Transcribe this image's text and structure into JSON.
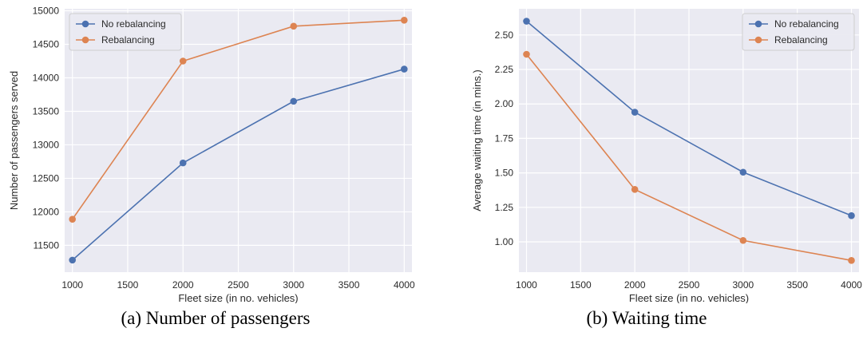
{
  "chart_data": [
    {
      "type": "line",
      "caption": "(a) Number of passengers",
      "xlabel": "Fleet size (in no. vehicles)",
      "ylabel": "Number of passengers served",
      "x": [
        1000,
        2000,
        3000,
        4000
      ],
      "xlim": [
        930,
        4070
      ],
      "ylim": [
        11100,
        15030
      ],
      "xticks": [
        1000,
        1500,
        2000,
        2500,
        3000,
        3500,
        4000
      ],
      "yticks": [
        11500,
        12000,
        12500,
        13000,
        13500,
        14000,
        14500,
        15000
      ],
      "grid": true,
      "legend_position": "top-left",
      "series": [
        {
          "name": "No rebalancing",
          "color": "#4c72b0",
          "values": [
            11280,
            12730,
            13650,
            14130
          ]
        },
        {
          "name": "Rebalancing",
          "color": "#dd8452",
          "values": [
            11890,
            14250,
            14770,
            14860
          ]
        }
      ]
    },
    {
      "type": "line",
      "caption": "(b) Waiting time",
      "xlabel": "Fleet size (in no. vehicles)",
      "ylabel": "Average waiting time (in mins.)",
      "x": [
        1000,
        2000,
        3000,
        4000
      ],
      "xlim": [
        930,
        4070
      ],
      "ylim": [
        0.78,
        2.69
      ],
      "xticks": [
        1000,
        1500,
        2000,
        2500,
        3000,
        3500,
        4000
      ],
      "yticks": [
        "1.00",
        "1.25",
        "1.50",
        "1.75",
        "2.00",
        "2.25",
        "2.50"
      ],
      "grid": true,
      "legend_position": "top-right",
      "series": [
        {
          "name": "No rebalancing",
          "color": "#4c72b0",
          "values": [
            2.6,
            1.94,
            1.505,
            1.19
          ]
        },
        {
          "name": "Rebalancing",
          "color": "#dd8452",
          "values": [
            2.36,
            1.38,
            1.01,
            0.865
          ]
        }
      ]
    }
  ]
}
